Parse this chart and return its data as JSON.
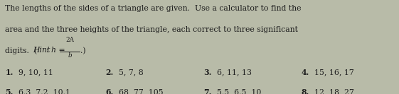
{
  "bg_color": "#b8bba8",
  "text_color": "#1e1e1e",
  "title_lines": [
    "The lengths of the sides of a triangle are given.  Use a calculator to find the",
    "area and the three heights of the triangle, each correct to three significant"
  ],
  "problems": [
    [
      "1.",
      "9, 10, 11",
      "2.",
      "5, 7, 8",
      "3.",
      "6, 11, 13",
      "4.",
      "15, 16, 17"
    ],
    [
      "5.",
      "6.3, 7.2, 10.1",
      "6.",
      "68, 77, 105",
      "7.",
      "5.5, 6.5, 10",
      "8.",
      "12, 18, 27"
    ]
  ],
  "title_fontsize": 7.8,
  "problem_fontsize": 7.8
}
